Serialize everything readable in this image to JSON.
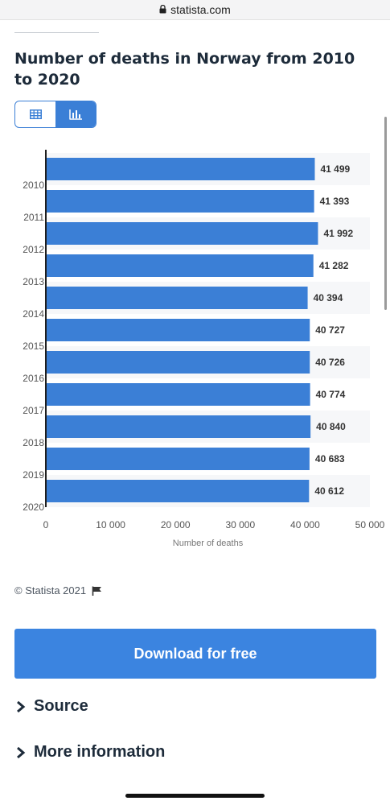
{
  "browser": {
    "url": "statista.com"
  },
  "page": {
    "title": "Number of deaths in Norway from 2010 to 2020",
    "copyright": "© Statista 2021",
    "download_label": "Download for free",
    "sections": {
      "source": "Source",
      "more_info": "More information"
    }
  },
  "colors": {
    "accent": "#3b7fd6",
    "bar": "#3b7fd6",
    "button": "#3b84e0",
    "title": "#1d2b3a"
  },
  "icons": {
    "table_view": "table-icon",
    "chart_view": "bar-chart-icon",
    "flag": "flag-icon"
  },
  "chart_data": {
    "type": "bar",
    "orientation": "horizontal",
    "categories": [
      "2010",
      "2011",
      "2012",
      "2013",
      "2014",
      "2015",
      "2016",
      "2017",
      "2018",
      "2019",
      "2020"
    ],
    "values": [
      41499,
      41393,
      41992,
      41282,
      40394,
      40727,
      40726,
      40774,
      40840,
      40683,
      40612
    ],
    "value_labels": [
      "41 499",
      "41 393",
      "41 992",
      "41 282",
      "40 394",
      "40 727",
      "40 726",
      "40 774",
      "40 840",
      "40 683",
      "40 612"
    ],
    "xlabel": "Number of deaths",
    "xlim": [
      0,
      50000
    ],
    "xticks": [
      0,
      10000,
      20000,
      30000,
      40000,
      50000
    ],
    "xtick_labels": [
      "0",
      "10 000",
      "20 000",
      "30 000",
      "40 000",
      "50 000"
    ],
    "grid": false
  }
}
